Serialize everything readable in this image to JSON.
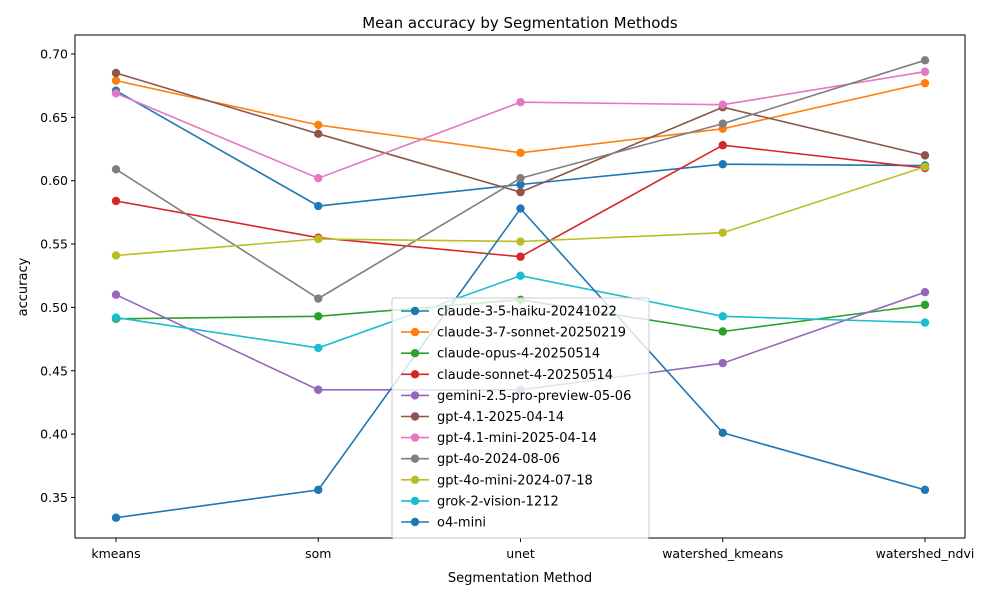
{
  "chart_data": {
    "type": "line",
    "title": "Mean accuracy by Segmentation Methods",
    "xlabel": "Segmentation Method",
    "ylabel": "accuracy",
    "categories": [
      "kmeans",
      "som",
      "unet",
      "watershed_kmeans",
      "watershed_ndvi"
    ],
    "ylim": [
      0.318,
      0.715
    ],
    "yticks": [
      0.35,
      0.4,
      0.45,
      0.5,
      0.55,
      0.6,
      0.65,
      0.7
    ],
    "ytick_labels": [
      "0.35",
      "0.40",
      "0.45",
      "0.50",
      "0.55",
      "0.60",
      "0.65",
      "0.70"
    ],
    "grid": false,
    "legend_position": "lower center",
    "series": [
      {
        "name": "claude-3-5-haiku-20241022",
        "color": "#1f77b4",
        "values": [
          0.671,
          0.58,
          0.597,
          0.613,
          0.612
        ]
      },
      {
        "name": "claude-3-7-sonnet-20250219",
        "color": "#ff7f0e",
        "values": [
          0.679,
          0.644,
          0.622,
          0.641,
          0.677
        ]
      },
      {
        "name": "claude-opus-4-20250514",
        "color": "#2ca02c",
        "values": [
          0.491,
          0.493,
          0.506,
          0.481,
          0.502
        ]
      },
      {
        "name": "claude-sonnet-4-20250514",
        "color": "#d62728",
        "values": [
          0.584,
          0.555,
          0.54,
          0.628,
          0.61
        ]
      },
      {
        "name": "gemini-2.5-pro-preview-05-06",
        "color": "#9467bd",
        "values": [
          0.51,
          0.435,
          0.435,
          0.456,
          0.512
        ]
      },
      {
        "name": "gpt-4.1-2025-04-14",
        "color": "#8c564b",
        "values": [
          0.685,
          0.637,
          0.591,
          0.658,
          0.62
        ]
      },
      {
        "name": "gpt-4.1-mini-2025-04-14",
        "color": "#e377c2",
        "values": [
          0.669,
          0.602,
          0.662,
          0.66,
          0.686
        ]
      },
      {
        "name": "gpt-4o-2024-08-06",
        "color": "#7f7f7f",
        "values": [
          0.609,
          0.507,
          0.602,
          0.645,
          0.695
        ]
      },
      {
        "name": "gpt-4o-mini-2024-07-18",
        "color": "#bcbd22",
        "values": [
          0.541,
          0.554,
          0.552,
          0.559,
          0.611
        ]
      },
      {
        "name": "grok-2-vision-1212",
        "color": "#17becf",
        "values": [
          0.492,
          0.468,
          0.525,
          0.493,
          0.488
        ]
      },
      {
        "name": "o4-mini",
        "color": "#1f77b4",
        "values": [
          0.334,
          0.356,
          0.578,
          0.401,
          0.356
        ]
      }
    ]
  }
}
